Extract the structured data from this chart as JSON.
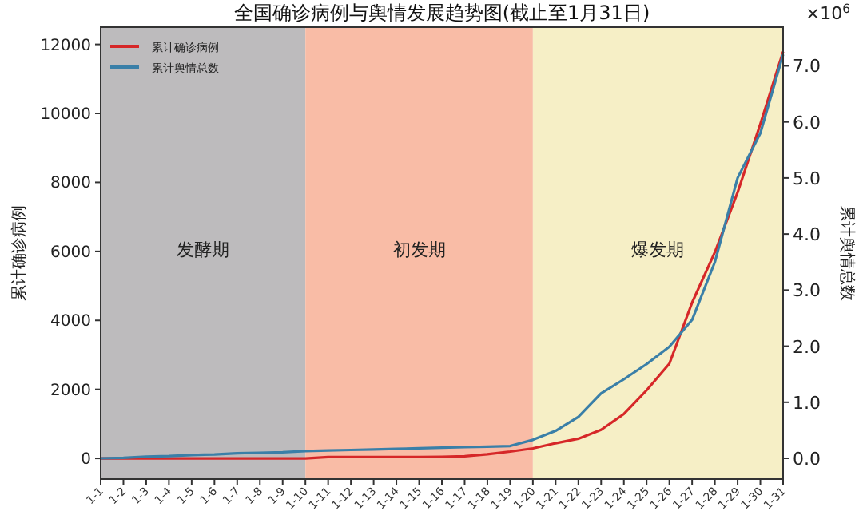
{
  "chart_data": {
    "type": "line",
    "title": "全国确诊病例与舆情发展趋势图(截止至1月31日)",
    "ylabel": "累计确诊病例",
    "y2label": "累计舆情总数",
    "categories": [
      "1-1",
      "1-2",
      "1-3",
      "1-4",
      "1-5",
      "1-6",
      "1-7",
      "1-8",
      "1-9",
      "1-10",
      "1-11",
      "1-12",
      "1-13",
      "1-14",
      "1-15",
      "1-16",
      "1-17",
      "1-18",
      "1-19",
      "1-20",
      "1-21",
      "1-22",
      "1-23",
      "1-24",
      "1-25",
      "1-26",
      "1-27",
      "1-28",
      "1-29",
      "1-30",
      "1-31"
    ],
    "series": [
      {
        "name": "累计确诊病例",
        "color": "#d62728",
        "values": [
          0,
          0,
          0,
          0,
          0,
          0,
          0,
          0,
          0,
          0,
          41,
          41,
          41,
          41,
          41,
          45,
          62,
          121,
          198,
          291,
          440,
          571,
          830,
          1287,
          1975,
          2744,
          4515,
          5974,
          7711,
          9692,
          11791
        ]
      },
      {
        "name": "累计舆情总数",
        "color": "#3a7fa8",
        "axis": "y2",
        "values": [
          0,
          0.01,
          0.03,
          0.04,
          0.06,
          0.07,
          0.09,
          0.1,
          0.11,
          0.13,
          0.14,
          0.15,
          0.16,
          0.17,
          0.18,
          0.19,
          0.2,
          0.21,
          0.22,
          0.33,
          0.49,
          0.74,
          1.16,
          1.41,
          1.68,
          1.99,
          2.47,
          3.5,
          5.0,
          5.8,
          7.2
        ]
      }
    ],
    "ylim": [
      -600,
      12500
    ],
    "yticks": [
      0,
      2000,
      4000,
      6000,
      8000,
      10000,
      12000
    ],
    "y2lim": [
      -0.37,
      7.69
    ],
    "y2ticks": [
      {
        "value": 0,
        "label": "0.0"
      },
      {
        "value": 1,
        "label": "1.0"
      },
      {
        "value": 2,
        "label": "2.0"
      },
      {
        "value": 3,
        "label": "3.0"
      },
      {
        "value": 4,
        "label": "4.0"
      },
      {
        "value": 5,
        "label": "5.0"
      },
      {
        "value": 6,
        "label": "6.0"
      },
      {
        "value": 7,
        "label": "7.0"
      }
    ],
    "bands": [
      {
        "axis": "x",
        "from": "1-1",
        "to": "1-10",
        "label": "发酵期",
        "color": "#bdbbbd"
      },
      {
        "axis": "x",
        "from": "1-10",
        "to": "1-20",
        "label": "初发期",
        "color": "#f9bca6"
      },
      {
        "axis": "x",
        "from": "1-20",
        "to": "1-31",
        "label": "爆发期",
        "color": "#f6efc6"
      }
    ],
    "annotations": [
      "×10$^{6}$"
    ],
    "legend": "top left",
    "grid": false,
    "marker": "none",
    "line_style": "solid"
  }
}
